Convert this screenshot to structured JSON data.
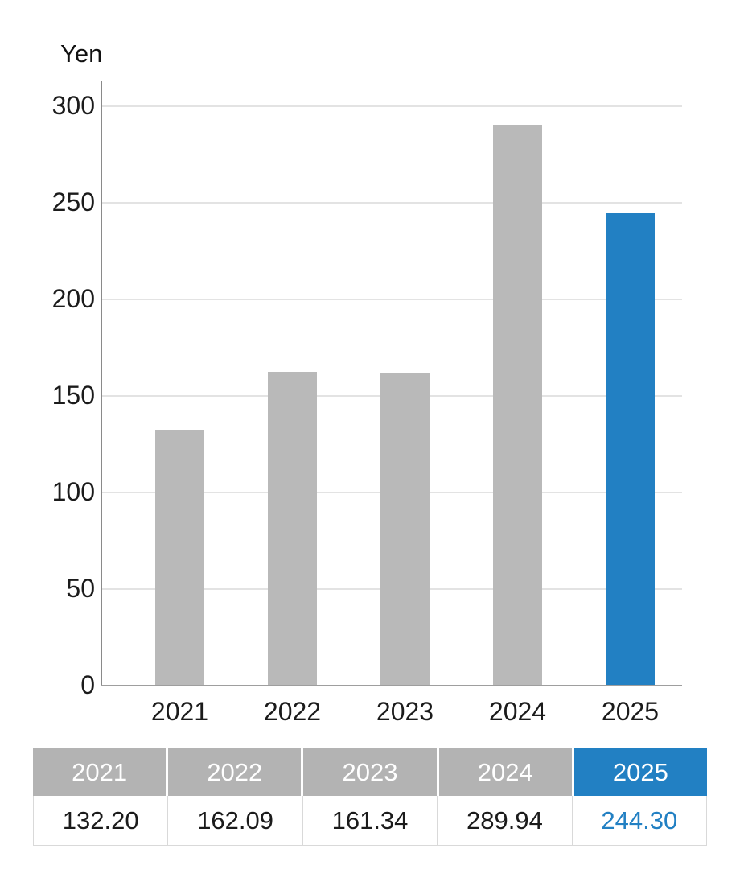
{
  "chart_data": {
    "type": "bar",
    "title": "Yen",
    "ylabel": "Yen",
    "xlabel": "",
    "categories": [
      "2021",
      "2022",
      "2023",
      "2024",
      "2025"
    ],
    "values": [
      132.2,
      162.09,
      161.34,
      289.94,
      244.3
    ],
    "yticks": [
      0,
      50,
      100,
      150,
      200,
      250,
      300
    ],
    "ylim": [
      0,
      312.5
    ],
    "grid": true,
    "legend": "none",
    "bar_colors": [
      "#b9b9b9",
      "#b9b9b9",
      "#b9b9b9",
      "#b9b9b9",
      "#2280c3"
    ],
    "highlight_index": 4
  },
  "colors": {
    "accent_blue": "#2280c3",
    "bar_gray": "#b9b9b9",
    "table_header_gray": "#b3b3b3",
    "gridline": "#e3e3e3",
    "y_axis": "#8a8a8a",
    "x_axis": "#9e9e9e",
    "text": "#1b1b1b",
    "table_header_text": "#ffffff"
  },
  "table": {
    "headers": [
      "2021",
      "2022",
      "2023",
      "2024",
      "2025"
    ],
    "values": [
      "132.20",
      "162.09",
      "161.34",
      "289.94",
      "244.30"
    ],
    "highlight_column": "2025",
    "highlight_header_bg": "#2280c3",
    "highlight_value_color": "#2280c3"
  }
}
